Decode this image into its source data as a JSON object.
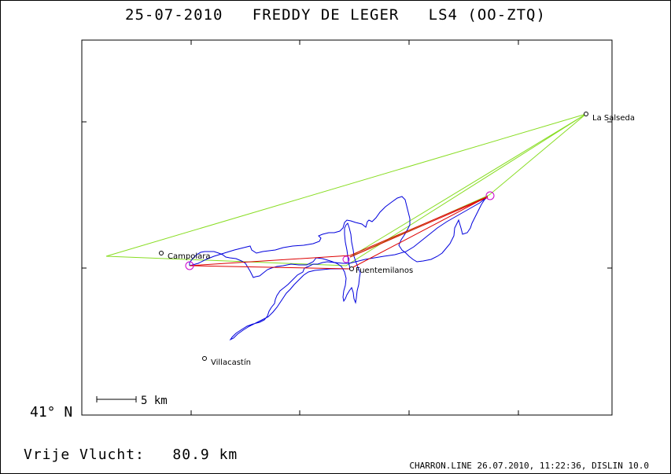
{
  "header": {
    "title": "25-07-2010   FREDDY DE LEGER   LS4 (OO-ZTQ)"
  },
  "axis": {
    "latitude_label": "41° N"
  },
  "places": [
    {
      "name": "La Salseda"
    },
    {
      "name": "Campolara"
    },
    {
      "name": "Fuentemilanos"
    },
    {
      "name": "Villacastín"
    }
  ],
  "scale_bar": {
    "label": "5 km"
  },
  "summary": {
    "distance_label": "Vrije Vlucht:",
    "distance_value": "80.9 km"
  },
  "footer": {
    "credit": "CHARRON.LINE 26.07.2010, 11:22:36, DISLIN 10.0"
  },
  "colors": {
    "task_line": "#88dd22",
    "flown_line": "#dd0000",
    "track": "#0000dd",
    "turnpoint_marker": "#cc00cc"
  }
}
